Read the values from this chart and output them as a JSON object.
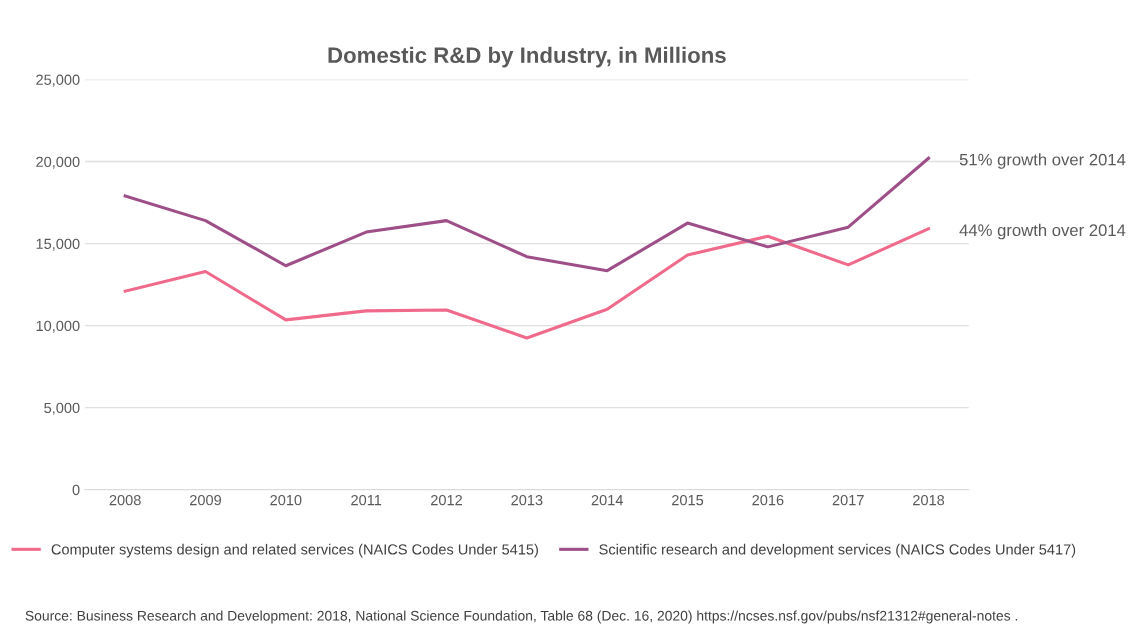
{
  "chart_data": {
    "type": "line",
    "title": "Domestic R&D by Industry, in Millions",
    "categories": [
      "2008",
      "2009",
      "2010",
      "2011",
      "2012",
      "2013",
      "2014",
      "2015",
      "2016",
      "2017",
      "2018"
    ],
    "series": [
      {
        "name": "Computer systems design and related services (NAICS Codes Under 5415)",
        "color": "#f06a8c",
        "values": [
          12100,
          13300,
          10350,
          10900,
          10950,
          9250,
          11000,
          14300,
          15450,
          13700,
          15900
        ]
      },
      {
        "name": "Scientific research and development services (NAICS Codes Under 5417)",
        "color": "#9e4f88",
        "values": [
          17900,
          16400,
          13650,
          15700,
          16400,
          14200,
          13350,
          16250,
          14800,
          16000,
          20200
        ]
      }
    ],
    "ylim": [
      0,
      25000
    ],
    "yticks": [
      {
        "value": 0,
        "label": "0"
      },
      {
        "value": 5000,
        "label": "5,000"
      },
      {
        "value": 10000,
        "label": "10,000"
      },
      {
        "value": 15000,
        "label": "15,000"
      },
      {
        "value": 20000,
        "label": "20,000"
      },
      {
        "value": 25000,
        "label": "25,000"
      }
    ],
    "grid": "y",
    "legend": "bottom",
    "marker": "none",
    "line_style": "solid",
    "annotations": [
      {
        "text": "51% growth over 2014",
        "x": "2018",
        "y": 20200
      },
      {
        "text": "44% growth over 2014",
        "x": "2018",
        "y": 15900
      },
      "Source: Business Research and Development: 2018, National Science Foundation, Table 68 (Dec. 16, 2020) https://ncses.nsf.gov/pubs/nsf21312#general-notes ."
    ]
  }
}
